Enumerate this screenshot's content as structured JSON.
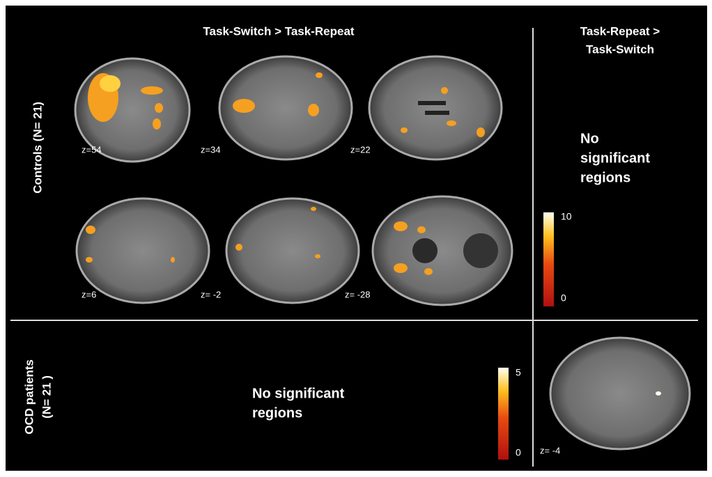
{
  "columns": [
    {
      "title_lines": [
        "Task-Switch  > Task-Repeat"
      ]
    },
    {
      "title_lines": [
        "Task-Repeat >",
        "Task-Switch"
      ]
    }
  ],
  "rows": [
    {
      "label_lines": [
        "Controls (N= 21)"
      ]
    },
    {
      "label_lines": [
        "OCD patients",
        "(N= 21 )"
      ]
    }
  ],
  "controls": {
    "slices": [
      "z=54",
      "z=34",
      "z=22",
      "z=6",
      "z= -2",
      "z= -28"
    ],
    "no_result_lines": [
      "No",
      "significant",
      "regions"
    ],
    "colorbar": {
      "max": 10,
      "min": 0
    }
  },
  "patients": {
    "no_result_lines": [
      "No significant",
      "regions"
    ],
    "slice": "z= -4",
    "colorbar": {
      "max": 5,
      "min": 0
    }
  }
}
